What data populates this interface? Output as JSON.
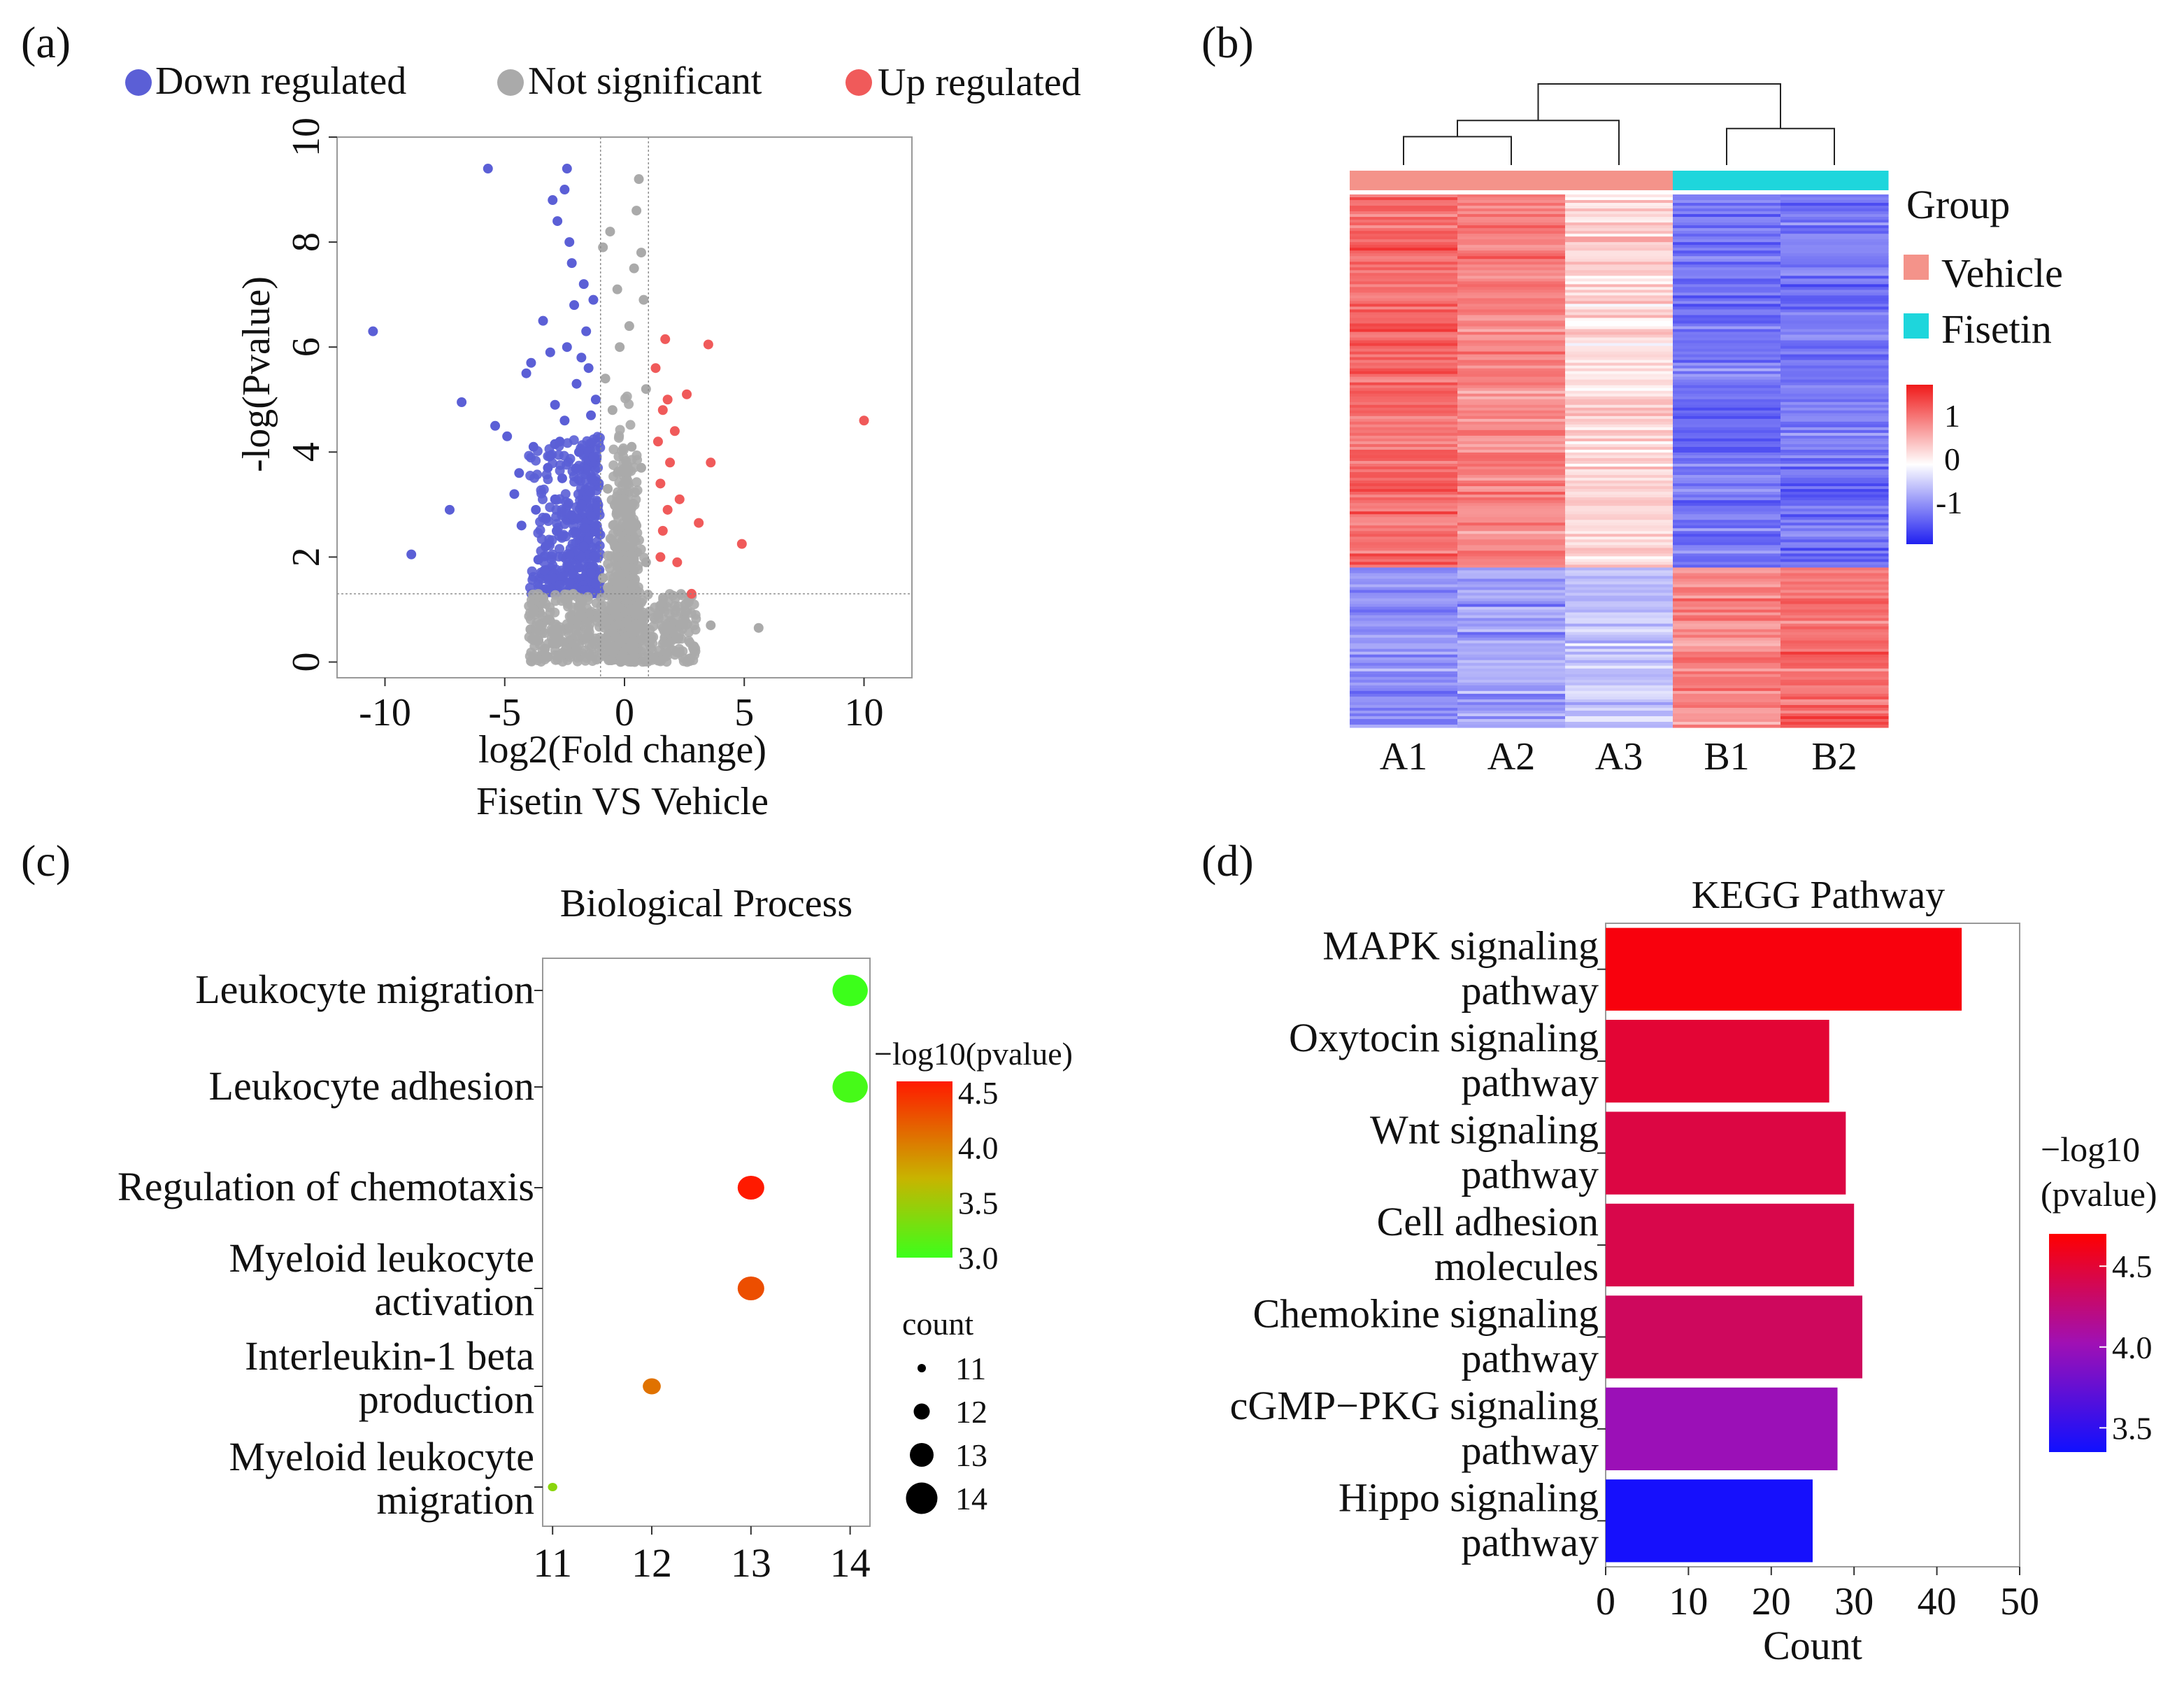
{
  "panels": {
    "a": {
      "label": "(a)"
    },
    "b": {
      "label": "(b)"
    },
    "c": {
      "label": "(c)"
    },
    "d": {
      "label": "(d)"
    }
  },
  "colors": {
    "down": "#5b5fd6",
    "not_sig": "#aaaaaa",
    "up": "#f05a5a",
    "vehicle": "#f4938a",
    "fisetin": "#1ed6dc",
    "heat_high": "#f02a2a",
    "heat_mid": "#ffffff",
    "heat_low": "#3a3af0",
    "dot_high": "#ff1a00",
    "dot_low": "#3cff1a",
    "bar_high": "#ff0000",
    "bar_low": "#1010ff"
  },
  "chart_data": [
    {
      "id": "a",
      "type": "scatter",
      "title": "",
      "legend": [
        "Down regulated",
        "Not significant",
        "Up regulated"
      ],
      "legend_position": "top",
      "xlabel": "log2(Fold change)",
      "xlabel2": "Fisetin VS Vehicle",
      "ylabel": "-log(Pvalue)",
      "xlim": [
        -12,
        12
      ],
      "ylim": [
        -0.3,
        10
      ],
      "xticks": [
        -10,
        -5,
        0,
        5,
        10
      ],
      "yticks": [
        0,
        2,
        4,
        6,
        8,
        10
      ],
      "fc_threshold": [
        -1,
        1
      ],
      "p_threshold": 1.3,
      "down_points": [
        [
          -10.5,
          6.3
        ],
        [
          -8.9,
          2.05
        ],
        [
          -7.3,
          2.9
        ],
        [
          -6.8,
          4.95
        ],
        [
          -5.7,
          9.4
        ],
        [
          -5.4,
          4.5
        ],
        [
          -4.9,
          4.3
        ],
        [
          -4.6,
          3.2
        ],
        [
          -4.3,
          2.6
        ],
        [
          -4.1,
          5.5
        ],
        [
          -3.9,
          5.7
        ],
        [
          -3.7,
          2.9
        ],
        [
          -3.6,
          1.95
        ],
        [
          -3.4,
          6.5
        ],
        [
          -3.2,
          3.7
        ],
        [
          -3.1,
          5.9
        ],
        [
          -3.0,
          8.8
        ],
        [
          -2.8,
          8.4
        ],
        [
          -2.7,
          4.2
        ],
        [
          -2.6,
          3.5
        ],
        [
          -2.5,
          9.0
        ],
        [
          -2.4,
          9.4
        ],
        [
          -2.3,
          8.0
        ],
        [
          -2.2,
          7.6
        ],
        [
          -2.1,
          6.8
        ],
        [
          -2.0,
          5.3
        ],
        [
          -1.9,
          4.0
        ],
        [
          -1.8,
          3.0
        ],
        [
          -1.7,
          2.2
        ],
        [
          -1.6,
          6.3
        ],
        [
          -1.5,
          5.6
        ],
        [
          -1.4,
          4.7
        ],
        [
          -1.3,
          3.9
        ],
        [
          -1.2,
          5.0
        ],
        [
          -1.15,
          2.6
        ],
        [
          -2.9,
          3.1
        ],
        [
          -3.3,
          2.2
        ],
        [
          -2.5,
          4.6
        ],
        [
          -1.7,
          7.2
        ],
        [
          -1.3,
          6.9
        ],
        [
          -3.8,
          4.1
        ],
        [
          -4.4,
          3.6
        ],
        [
          -2.2,
          2.8
        ],
        [
          -2.6,
          2.4
        ],
        [
          -1.9,
          1.8
        ],
        [
          -3.0,
          1.6
        ],
        [
          -1.4,
          1.7
        ],
        [
          -2.4,
          6.0
        ],
        [
          -1.8,
          5.8
        ],
        [
          -2.9,
          4.9
        ]
      ],
      "up_points": [
        [
          1.3,
          5.6
        ],
        [
          1.4,
          4.2
        ],
        [
          1.5,
          3.4
        ],
        [
          1.6,
          2.5
        ],
        [
          1.7,
          6.15
        ],
        [
          1.8,
          5.0
        ],
        [
          1.9,
          3.8
        ],
        [
          2.1,
          4.4
        ],
        [
          2.3,
          3.1
        ],
        [
          2.6,
          5.1
        ],
        [
          2.8,
          1.3
        ],
        [
          3.1,
          2.65
        ],
        [
          3.5,
          6.05
        ],
        [
          3.6,
          3.8
        ],
        [
          4.9,
          2.25
        ],
        [
          10.0,
          4.6
        ],
        [
          1.5,
          2.0
        ],
        [
          1.8,
          2.9
        ],
        [
          2.2,
          1.9
        ],
        [
          1.6,
          4.8
        ]
      ],
      "ns_points": [
        [
          -0.9,
          7.9
        ],
        [
          -0.6,
          8.2
        ],
        [
          -0.3,
          7.1
        ],
        [
          0.4,
          7.5
        ],
        [
          0.5,
          8.6
        ],
        [
          0.7,
          7.8
        ],
        [
          0.6,
          9.2
        ],
        [
          0.2,
          6.4
        ],
        [
          -0.2,
          6.0
        ],
        [
          0.8,
          6.9
        ],
        [
          -0.8,
          5.4
        ],
        [
          0.9,
          5.2
        ],
        [
          -0.5,
          4.8
        ],
        [
          0.3,
          4.1
        ],
        [
          0.7,
          3.7
        ],
        [
          -0.7,
          3.3
        ],
        [
          -0.1,
          2.9
        ],
        [
          0.5,
          2.6
        ],
        [
          -0.4,
          2.2
        ],
        [
          0.9,
          1.9
        ],
        [
          -0.9,
          1.6
        ],
        [
          0.1,
          1.2
        ],
        [
          1.4,
          0.9
        ],
        [
          2.0,
          0.6
        ],
        [
          2.9,
          0.3
        ],
        [
          5.6,
          0.65
        ],
        [
          -2.0,
          0.8
        ],
        [
          -3.0,
          0.35
        ],
        [
          -1.5,
          0.5
        ],
        [
          1.1,
          0.1
        ],
        [
          -3.8,
          1.0
        ],
        [
          -2.5,
          1.2
        ],
        [
          3.6,
          0.7
        ],
        [
          -0.6,
          1.0
        ],
        [
          0.4,
          0.4
        ]
      ],
      "dense_bands": [
        {
          "class": "down",
          "x_from": -4.0,
          "x_to": -1.0,
          "y_from": 1.3,
          "y_to": 4.3
        },
        {
          "class": "not_sig",
          "x_from": -1.0,
          "x_to": 1.0,
          "y_from": 0.0,
          "y_to": 6.0
        },
        {
          "class": "not_sig",
          "x_from": -4.0,
          "x_to": 3.0,
          "y_from": 0.0,
          "y_to": 1.3
        }
      ]
    },
    {
      "id": "b",
      "type": "heatmap",
      "columns": [
        "A1",
        "A2",
        "A3",
        "B1",
        "B2"
      ],
      "groups": [
        "Vehicle",
        "Vehicle",
        "Vehicle",
        "Fisetin",
        "Fisetin"
      ],
      "legend_title": "Group",
      "legend_labels": [
        "Vehicle",
        "Fisetin"
      ],
      "scale_ticks": [
        "1",
        "0",
        "-1"
      ],
      "scale_range": [
        -1.6,
        1.6
      ],
      "upper_cluster_fraction": 0.7,
      "upper_block_means": [
        1.1,
        0.9,
        0.3,
        -1.1,
        -1.1
      ],
      "lower_block_means": [
        -0.9,
        -0.8,
        -0.5,
        0.9,
        1.1
      ],
      "dendrogram_merges": [
        [
          0,
          1,
          0.35
        ],
        [
          5,
          2,
          0.55
        ],
        [
          3,
          4,
          0.45
        ],
        [
          6,
          7,
          1.0
        ]
      ]
    },
    {
      "id": "c",
      "type": "scatter",
      "title": "Biological Process",
      "categories": [
        "Leukocyte migration",
        "Leukocyte adhesion",
        "Regulation of chemotaxis",
        "Myeloid leukocyte activation",
        "Interleukin-1 beta production",
        "Myeloid leukocyte migration"
      ],
      "category_lines": [
        [
          "Leukocyte migration"
        ],
        [
          "Leukocyte adhesion"
        ],
        [
          "Regulation of chemotaxis"
        ],
        [
          "Myeloid leukocyte",
          "activation"
        ],
        [
          "Interleukin-1 beta",
          "production"
        ],
        [
          "Myeloid leukocyte",
          "migration"
        ]
      ],
      "x": [
        14,
        14,
        13,
        13,
        12,
        11
      ],
      "count": [
        14,
        14,
        13,
        13,
        12,
        11
      ],
      "pvalue_log10": [
        3.0,
        3.05,
        4.6,
        4.3,
        4.1,
        3.4
      ],
      "xlim": [
        10.9,
        14.2
      ],
      "xticks": [
        11,
        12,
        13,
        14
      ],
      "color_title": "−log10(pvalue)",
      "color_ticks": [
        3.0,
        3.5,
        4.0,
        4.5
      ],
      "color_range": [
        3.0,
        4.6
      ],
      "size_title": "count",
      "size_ticks": [
        11,
        12,
        13,
        14
      ]
    },
    {
      "id": "d",
      "type": "bar",
      "orientation": "horizontal",
      "title": "KEGG Pathway",
      "categories": [
        "MAPK signaling pathway",
        "Oxytocin signaling pathway",
        "Wnt signaling pathway",
        "Cell adhesion molecules",
        "Chemokine signaling pathway",
        "cGMP−PKG signaling pathway",
        "Hippo signaling pathway"
      ],
      "category_lines": [
        [
          "MAPK signaling",
          "pathway"
        ],
        [
          "Oxytocin signaling",
          "pathway"
        ],
        [
          "Wnt signaling",
          "pathway"
        ],
        [
          "Cell adhesion",
          "molecules"
        ],
        [
          "Chemokine signaling",
          "pathway"
        ],
        [
          "cGMP−PKG signaling",
          "pathway"
        ],
        [
          "Hippo signaling",
          "pathway"
        ]
      ],
      "values": [
        43,
        27,
        29,
        30,
        31,
        28,
        25
      ],
      "pvalue_log10": [
        4.65,
        4.5,
        4.45,
        4.42,
        4.35,
        4.0,
        3.38
      ],
      "xlabel": "Count",
      "xlim": [
        0,
        50
      ],
      "xticks": [
        0,
        10,
        20,
        30,
        40,
        50
      ],
      "color_title_lines": [
        "−log10",
        "(pvalue)"
      ],
      "color_ticks": [
        3.5,
        4.0,
        4.5
      ],
      "color_range": [
        3.35,
        4.7
      ]
    }
  ]
}
